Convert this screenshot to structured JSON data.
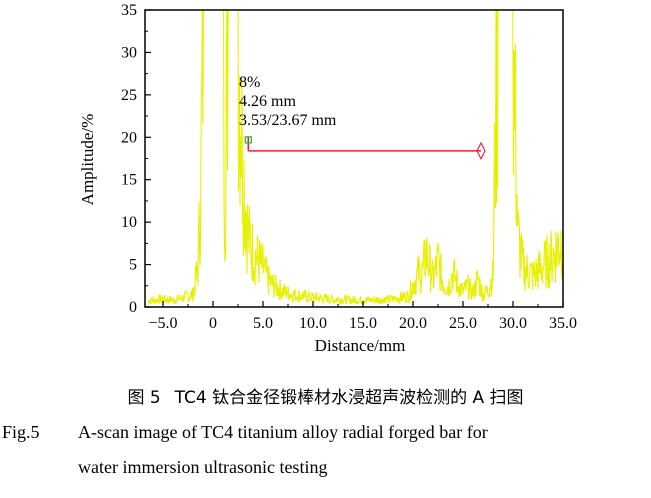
{
  "chart_data": {
    "type": "line",
    "xlabel": "Distance/mm",
    "ylabel": "Amplitude/%",
    "xlim": [
      -6.8,
      35.0
    ],
    "ylim": [
      0,
      35
    ],
    "xticks": [
      -5.0,
      0,
      5.0,
      10.0,
      15.0,
      20.0,
      25.0,
      30.0,
      35.0
    ],
    "xtick_labels": [
      "−5.0",
      "0",
      "5.0",
      "10.0",
      "15.0",
      "20.0",
      "25.0",
      "30.0",
      "35.0"
    ],
    "yticks": [
      0,
      5,
      10,
      15,
      20,
      25,
      30,
      35
    ],
    "ytick_labels": [
      "0",
      "5",
      "10",
      "15",
      "20",
      "25",
      "30",
      "35"
    ],
    "series": [
      {
        "name": "A-scan",
        "color": "#e6f000",
        "x": [
          -6.5,
          -5.0,
          -4.0,
          -3.0,
          -2.0,
          -1.5,
          -1.2,
          -1.0,
          -0.9,
          -0.8,
          0.0,
          0.5,
          1.0,
          1.2,
          1.5,
          2.0,
          2.5,
          3.0,
          3.5,
          4.0,
          4.5,
          5.0,
          5.5,
          6.0,
          7.0,
          8.0,
          9.0,
          10.0,
          12.0,
          14.0,
          16.0,
          18.0,
          19.5,
          20.0,
          20.5,
          21.0,
          21.3,
          21.6,
          22.0,
          22.5,
          23.0,
          23.5,
          24.0,
          24.5,
          25.0,
          25.5,
          26.0,
          26.5,
          27.0,
          27.5,
          28.0,
          28.2,
          28.5,
          28.8,
          29.0,
          30.0,
          30.5,
          31.0,
          32.0,
          33.0,
          34.0,
          35.0
        ],
        "y": [
          0.8,
          1.0,
          0.9,
          1.2,
          1.6,
          5.0,
          17.0,
          35.0,
          35.0,
          35.0,
          35.0,
          35.0,
          35.0,
          12.0,
          35.0,
          35.0,
          35.0,
          18.0,
          9.0,
          7.0,
          6.0,
          5.0,
          3.5,
          2.8,
          2.0,
          1.6,
          1.4,
          1.2,
          1.0,
          0.9,
          0.9,
          1.0,
          1.4,
          2.8,
          4.2,
          4.5,
          7.0,
          5.5,
          3.5,
          5.8,
          3.2,
          2.5,
          4.4,
          2.8,
          2.0,
          2.6,
          1.8,
          3.6,
          1.5,
          2.2,
          4.0,
          20.0,
          35.0,
          35.0,
          35.0,
          35.0,
          9.0,
          5.0,
          4.0,
          5.2,
          6.5,
          9.0
        ]
      }
    ],
    "gate": {
      "color": "#e8202a",
      "x_start": 3.53,
      "x_end": 26.8,
      "level": 18.4
    },
    "annotations": [
      "8%",
      "4.26 mm",
      "3.53/23.67 mm"
    ]
  },
  "caption_cn": "图 5  TC4 钛合金径锻棒材水浸超声波检测的 A 扫图",
  "caption_en_label": "Fig.5",
  "caption_en_line1": "A-scan image of TC4 titanium alloy radial forged bar for",
  "caption_en_line2": "water immersion ultrasonic testing"
}
